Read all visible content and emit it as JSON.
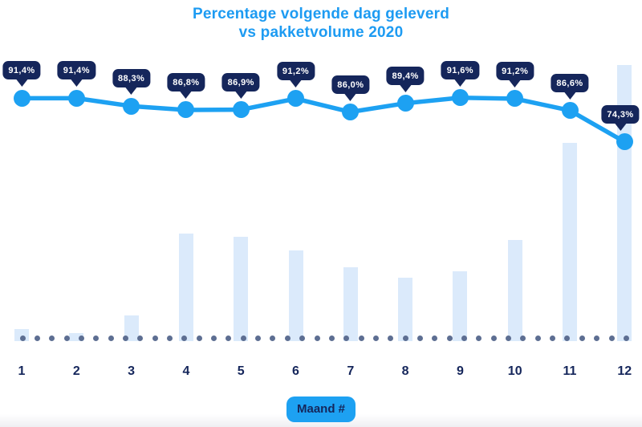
{
  "title": {
    "line1": "Percentage volgende dag geleverd",
    "line2": "vs pakketvolume 2020"
  },
  "x_axis": {
    "badge_label": "Maand #",
    "months": [
      "1",
      "2",
      "3",
      "4",
      "5",
      "6",
      "7",
      "8",
      "9",
      "10",
      "11",
      "12"
    ]
  },
  "chart_data": {
    "type": "combo",
    "title": "Percentage volgende dag geleverd vs pakketvolume 2020",
    "xlabel": "Maand #",
    "categories": [
      "1",
      "2",
      "3",
      "4",
      "5",
      "6",
      "7",
      "8",
      "9",
      "10",
      "11",
      "12"
    ],
    "series": [
      {
        "name": "Percentage volgende dag geleverd",
        "type": "line",
        "unit": "%",
        "values": [
          91.4,
          91.4,
          88.3,
          86.8,
          86.9,
          91.2,
          86.0,
          89.4,
          91.6,
          91.2,
          86.6,
          74.3
        ],
        "labels": [
          "91,4%",
          "91,4%",
          "88,3%",
          "86,8%",
          "86,9%",
          "91,2%",
          "86,0%",
          "89,4%",
          "91,6%",
          "91,2%",
          "86,6%",
          "74,3%"
        ]
      },
      {
        "name": "Pakketvolume 2020",
        "type": "bar",
        "note": "relative volume, percent of December (max), estimated from bar heights",
        "values": [
          4.4,
          2.9,
          9.3,
          39.0,
          37.8,
          32.8,
          26.7,
          23.0,
          25.3,
          36.6,
          71.8,
          100.0
        ]
      }
    ],
    "legend": "none",
    "grid": "off",
    "baseline_style": "dotted"
  },
  "colors": {
    "accent_blue": "#1DA1F2",
    "navy": "#15265B",
    "bar_fill": "#DBEAFB",
    "baseline_dot": "#5D6E92",
    "title_blue": "#1D9BF2",
    "background": "#FFFFFF"
  }
}
